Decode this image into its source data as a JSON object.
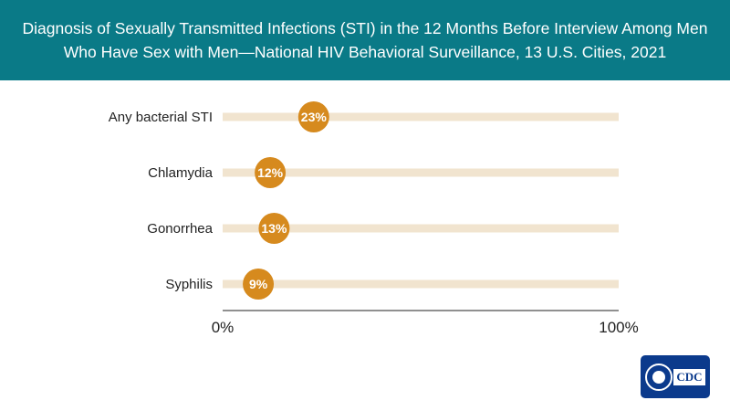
{
  "header": {
    "title_line1": "Diagnosis of Sexually Transmitted Infections (STI) in the 12 Months Before Interview Among Men",
    "title_line2": "Who Have Sex with Men—National HIV Behavioral Surveillance, 13 U.S. Cities, 2021"
  },
  "colors": {
    "header_bg": "#0a7a87",
    "track": "#f1e4cf",
    "dot": "#d68a1e"
  },
  "chart_data": {
    "type": "dot",
    "title": "Diagnosis of Sexually Transmitted Infections (STI) in the 12 Months Before Interview Among Men Who Have Sex with Men—National HIV Behavioral Surveillance, 13 U.S. Cities, 2021",
    "categories": [
      "Any bacterial STI",
      "Chlamydia",
      "Gonorrhea",
      "Syphilis"
    ],
    "values": [
      23,
      12,
      13,
      9
    ],
    "value_labels": [
      "23%",
      "12%",
      "13%",
      "9%"
    ],
    "xlim": [
      0,
      100
    ],
    "x_tick_labels": [
      "0%",
      "100%"
    ],
    "xlabel": "",
    "ylabel": "",
    "grid": false,
    "legend": "none"
  },
  "logo": {
    "text": "CDC",
    "icon": "hhs-seal-icon"
  }
}
